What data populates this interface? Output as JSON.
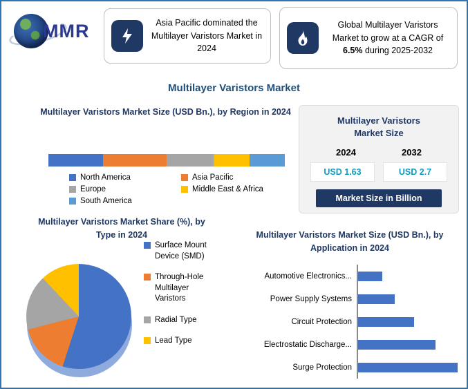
{
  "page": {
    "title": "Multilayer Varistors Market"
  },
  "colors": {
    "page_border": "#2E75B6",
    "heading_navy": "#1F3864",
    "title_blue": "#1F4E79",
    "icon_box_navy": "#203864",
    "value_teal": "#0F9BC1",
    "bar_blue": "#4472C4"
  },
  "logo": {
    "text": "MMR"
  },
  "callouts": {
    "left": {
      "icon": "lightning-icon",
      "text": "Asia Pacific dominated the Multilayer Varistors Market in 2024"
    },
    "right": {
      "icon": "flame-icon",
      "prefix": "Global Multilayer Varistors Market to grow at a CAGR of ",
      "highlight": "6.5%",
      "suffix": " during 2025-2032"
    }
  },
  "market_size_panel": {
    "title": "Multilayer Varistors Market Size",
    "columns": [
      {
        "year": "2024",
        "value": "USD 1.63"
      },
      {
        "year": "2032",
        "value": "USD 2.7"
      }
    ],
    "footer": "Market Size in Billion"
  },
  "chart_data": [
    {
      "id": "region",
      "type": "bar",
      "subtype": "stacked-horizontal-single-bar",
      "title": "Multilayer Varistors Market Size (USD Bn.), by Region in 2024",
      "categories": [
        "North America",
        "Asia Pacific",
        "Europe",
        "Middle East & Africa",
        "South America"
      ],
      "values": [
        23,
        27,
        20,
        15,
        15
      ],
      "units": "estimated % of bar length (no axis or data labels shown)",
      "colors": [
        "#4472C4",
        "#ED7D31",
        "#A5A5A5",
        "#FFC000",
        "#5B9BD5"
      ],
      "legend_position": "bottom",
      "grid": false
    },
    {
      "id": "type",
      "type": "pie",
      "title": "Multilayer Varistors Market Share (%), by Type in 2024",
      "categories": [
        "Surface Mount Device (SMD)",
        "Through-Hole Multilayer Varistors",
        "Radial Type",
        "Lead Type"
      ],
      "values": [
        55,
        16,
        17,
        12
      ],
      "units": "estimated % (no data labels shown)",
      "colors": [
        "#4472C4",
        "#ED7D31",
        "#A5A5A5",
        "#FFC000"
      ],
      "legend_position": "right",
      "style": "3d"
    },
    {
      "id": "application",
      "type": "bar",
      "subtype": "horizontal",
      "title": "Multilayer Varistors Market Size (USD Bn.), by Application in 2024",
      "categories": [
        "Automotive Electronics...",
        "Power Supply Systems",
        "Circuit Protection",
        "Electrostatic Discharge...",
        "Surge Protection"
      ],
      "values": [
        24,
        37,
        56,
        78,
        100
      ],
      "units": "relative bar length, % of longest bar (no axis labels shown)",
      "color": "#4472C4",
      "grid": false,
      "legend_position": "none"
    }
  ]
}
